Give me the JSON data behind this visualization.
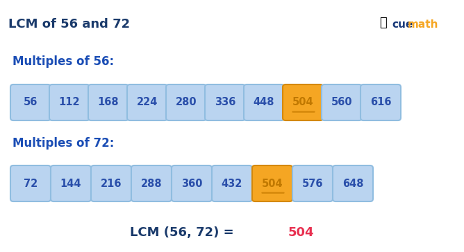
{
  "title": "LCM of 56 and 72",
  "multiples_56": [
    56,
    112,
    168,
    224,
    280,
    336,
    448,
    504,
    560,
    616
  ],
  "multiples_72": [
    72,
    144,
    216,
    288,
    360,
    432,
    504,
    576,
    648
  ],
  "highlight_56_index": 7,
  "highlight_72_index": 6,
  "label_56": "Multiples of 56:",
  "label_72": "Multiples of 72:",
  "lcm_label": "LCM (56, 72) = ",
  "lcm_number": "504",
  "box_color_normal": "#bad4f0",
  "box_color_highlight": "#f5a623",
  "box_border_normal": "#90bde0",
  "box_border_highlight": "#d4880a",
  "text_color_normal": "#2a4faa",
  "text_color_highlight": "#c07800",
  "title_color": "#1a3a6b",
  "label_color": "#1a4db5",
  "lcm_text_color": "#1a3a6b",
  "lcm_number_color": "#e83050",
  "background_color": "#ffffff",
  "cue_color": "#1a3a7a",
  "math_color": "#f5a623"
}
